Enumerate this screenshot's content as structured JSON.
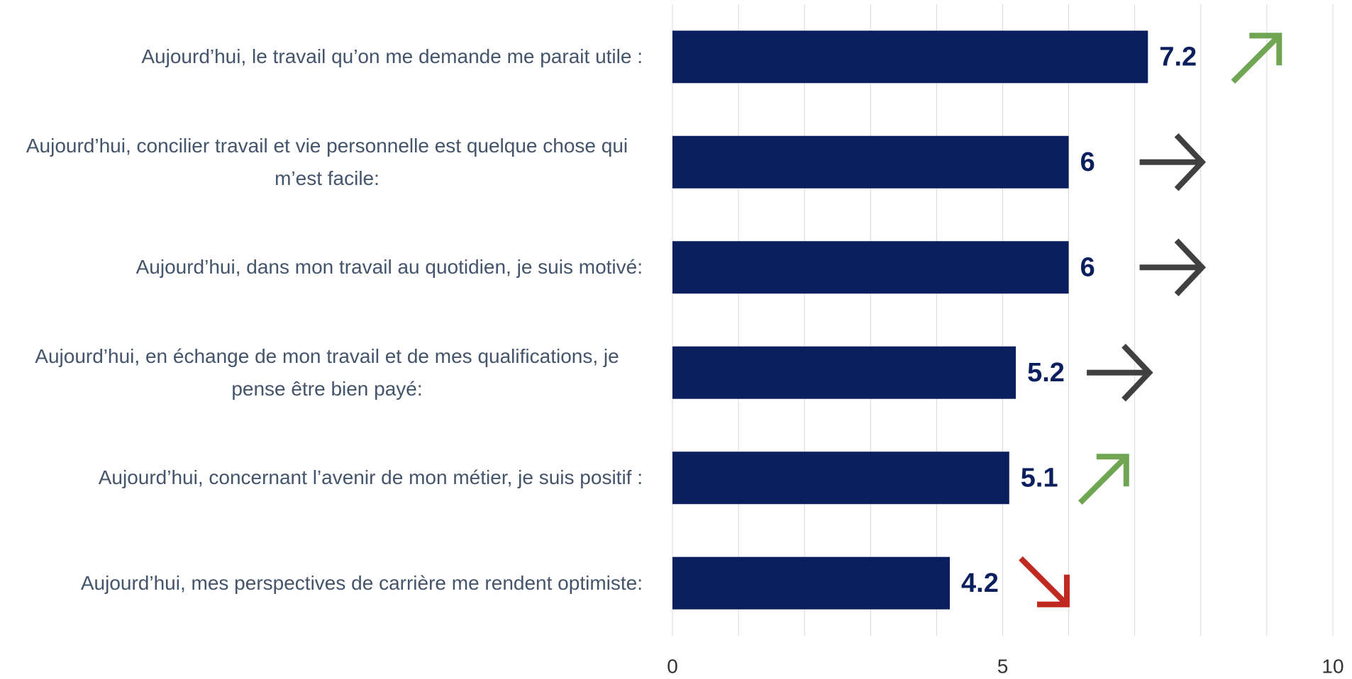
{
  "chart_data": {
    "type": "barh",
    "categories": [
      "Aujourd’hui, le travail qu’on me demande me parait utile :",
      "Aujourd’hui, concilier travail et vie personnelle est quelque chose qui m’est facile:",
      "Aujourd’hui, dans mon travail au quotidien, je suis motivé:",
      "Aujourd’hui, en échange de mon travail et de mes qualifications, je pense être bien payé:",
      "Aujourd’hui, concernant l’avenir de mon métier, je suis positif :",
      "Aujourd’hui, mes perspectives de carrière me rendent optimiste:"
    ],
    "values": [
      7.2,
      6,
      6,
      5.2,
      5.1,
      4.2
    ],
    "color": "#0b1f5e",
    "xlim": [
      0,
      10
    ],
    "xticks": [
      0,
      5,
      10
    ],
    "grid": true,
    "minor_grid_step": 1,
    "trends": [
      "up",
      "flat",
      "flat",
      "flat",
      "up",
      "down"
    ],
    "trend_colors": {
      "up": "#70a653",
      "flat": "#404040",
      "down": "#c0291f"
    }
  }
}
